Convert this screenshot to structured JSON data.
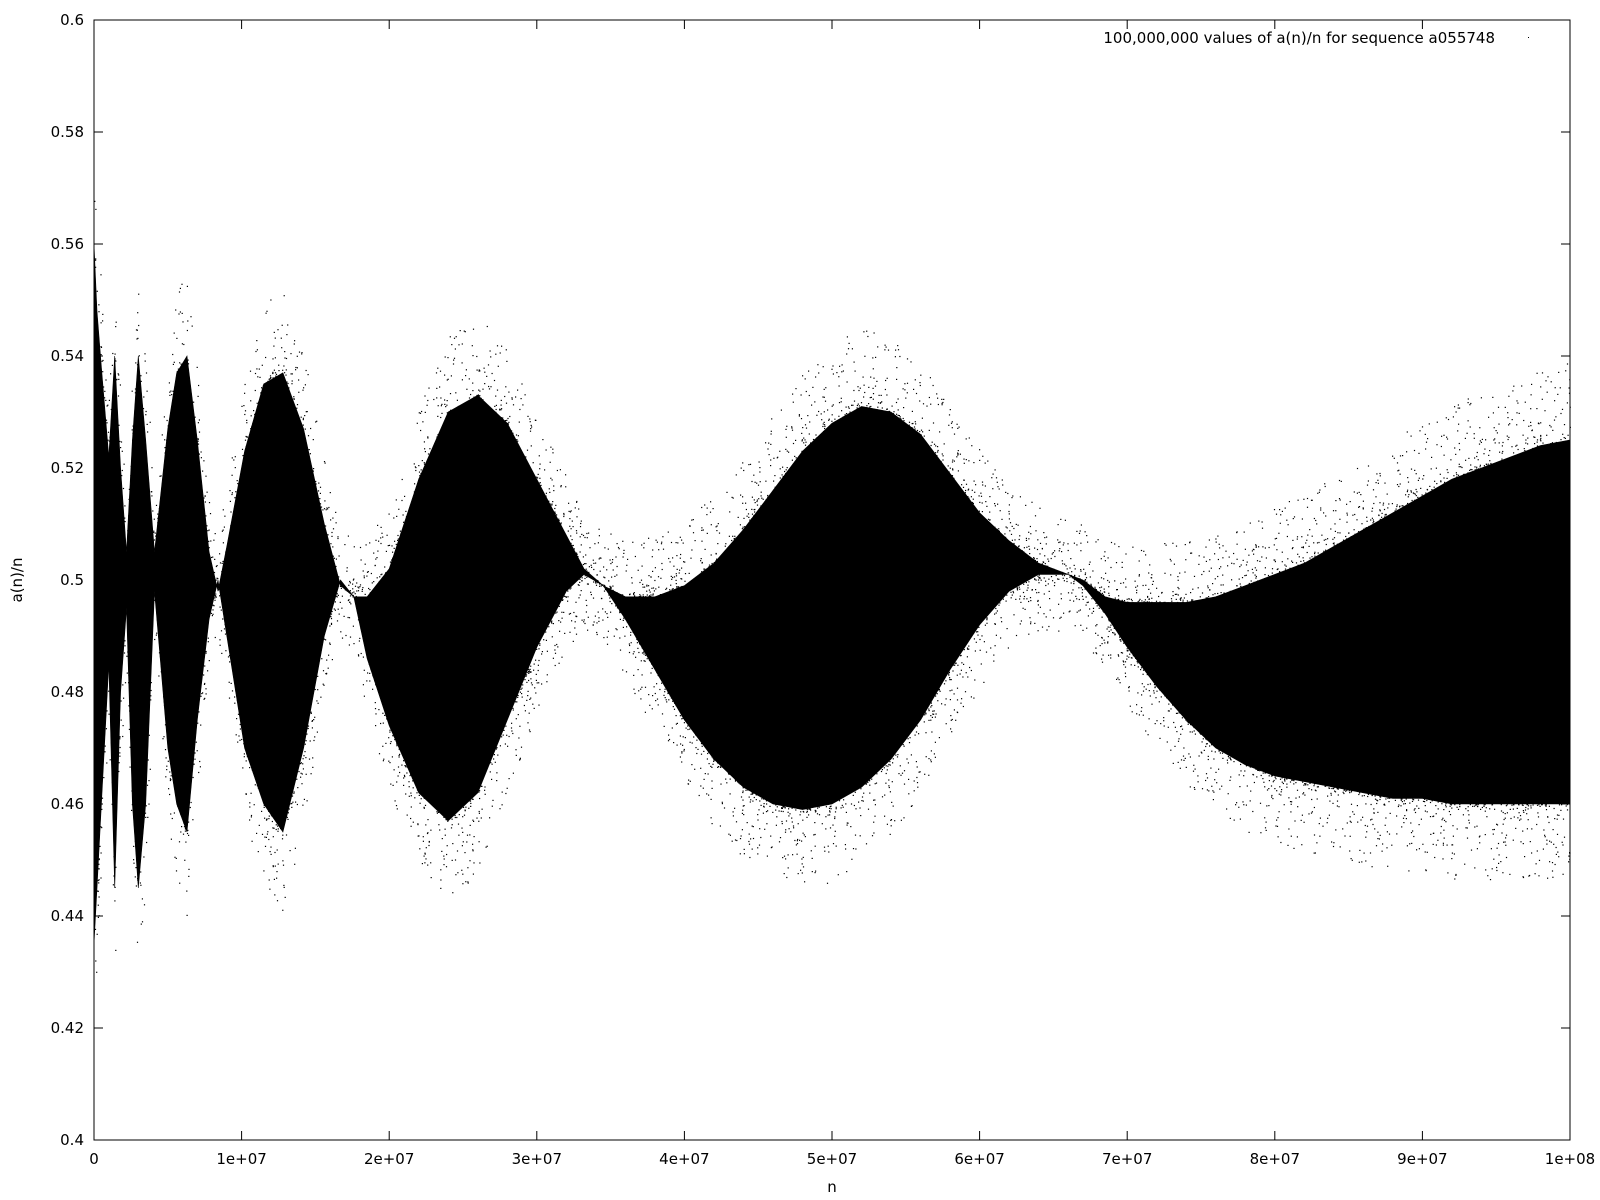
{
  "chart_data": {
    "type": "scatter",
    "title": "",
    "xlabel": "n",
    "ylabel": "a(n)/n",
    "xlim": [
      0,
      100000000
    ],
    "ylim": [
      0.4,
      0.6
    ],
    "x_ticks": [
      0,
      10000000,
      20000000,
      30000000,
      40000000,
      50000000,
      60000000,
      70000000,
      80000000,
      90000000,
      100000000
    ],
    "x_tick_labels": [
      "0",
      "1e+07",
      "2e+07",
      "3e+07",
      "4e+07",
      "5e+07",
      "6e+07",
      "7e+07",
      "8e+07",
      "9e+07",
      "1e+08"
    ],
    "y_ticks": [
      0.4,
      0.42,
      0.44,
      0.46,
      0.48,
      0.5,
      0.52,
      0.54,
      0.56,
      0.58,
      0.6
    ],
    "y_tick_labels": [
      "0.4",
      "0.42",
      "0.44",
      "0.46",
      "0.48",
      "0.5",
      "0.52",
      "0.54",
      "0.56",
      "0.58",
      "0.6"
    ],
    "grid": false,
    "legend_position": "top-right",
    "series": [
      {
        "name": "100,000,000 values of a(n)/n for sequence a055748",
        "color": "#000000",
        "marker": "dot",
        "upper_envelope": {
          "x": [
            0,
            200000,
            500000,
            1000000,
            1400000,
            1800000,
            2200000,
            2600000,
            3000000,
            3500000,
            4100000,
            5000000,
            5600000,
            6300000,
            7000000,
            7800000,
            8400000,
            9000000,
            10200000,
            11500000,
            12800000,
            14200000,
            15600000,
            16700000,
            17600000,
            18500000,
            20000000,
            22000000,
            24000000,
            26000000,
            28000000,
            30000000,
            32000000,
            33200000,
            34500000,
            36000000,
            38000000,
            40000000,
            42000000,
            44000000,
            46000000,
            48000000,
            50000000,
            52000000,
            54000000,
            56000000,
            58000000,
            60000000,
            62000000,
            64000000,
            66000000,
            67000000,
            68500000,
            70000000,
            72000000,
            74000000,
            76000000,
            78000000,
            80000000,
            82000000,
            84000000,
            86000000,
            88000000,
            90000000,
            92000000,
            94000000,
            96000000,
            98000000,
            100000000
          ],
          "y": [
            0.56,
            0.548,
            0.538,
            0.522,
            0.54,
            0.52,
            0.505,
            0.525,
            0.54,
            0.525,
            0.505,
            0.527,
            0.537,
            0.54,
            0.525,
            0.505,
            0.498,
            0.506,
            0.523,
            0.535,
            0.537,
            0.527,
            0.51,
            0.499,
            0.497,
            0.497,
            0.502,
            0.518,
            0.53,
            0.533,
            0.528,
            0.518,
            0.508,
            0.502,
            0.499,
            0.497,
            0.497,
            0.499,
            0.503,
            0.509,
            0.516,
            0.523,
            0.528,
            0.531,
            0.53,
            0.526,
            0.519,
            0.512,
            0.507,
            0.503,
            0.501,
            0.5,
            0.497,
            0.496,
            0.496,
            0.496,
            0.497,
            0.499,
            0.501,
            0.503,
            0.506,
            0.509,
            0.512,
            0.515,
            0.518,
            0.52,
            0.522,
            0.524,
            0.525
          ]
        },
        "lower_envelope": {
          "x": [
            0,
            200000,
            500000,
            1000000,
            1400000,
            1800000,
            2200000,
            2600000,
            3000000,
            3500000,
            4100000,
            5000000,
            5600000,
            6300000,
            7000000,
            7800000,
            8400000,
            9000000,
            10200000,
            11500000,
            12800000,
            14200000,
            15600000,
            16700000,
            17600000,
            18500000,
            20000000,
            22000000,
            24000000,
            26000000,
            28000000,
            30000000,
            32000000,
            33200000,
            34500000,
            36000000,
            38000000,
            40000000,
            42000000,
            44000000,
            46000000,
            48000000,
            50000000,
            52000000,
            54000000,
            56000000,
            58000000,
            60000000,
            62000000,
            64000000,
            66000000,
            67000000,
            68500000,
            70000000,
            72000000,
            74000000,
            76000000,
            78000000,
            80000000,
            82000000,
            84000000,
            86000000,
            88000000,
            90000000,
            92000000,
            94000000,
            96000000,
            98000000,
            100000000
          ],
          "y": [
            0.435,
            0.445,
            0.46,
            0.485,
            0.445,
            0.48,
            0.495,
            0.46,
            0.445,
            0.46,
            0.498,
            0.47,
            0.46,
            0.455,
            0.475,
            0.493,
            0.5,
            0.49,
            0.47,
            0.46,
            0.455,
            0.47,
            0.49,
            0.5,
            0.497,
            0.486,
            0.474,
            0.462,
            0.457,
            0.462,
            0.475,
            0.488,
            0.498,
            0.501,
            0.499,
            0.493,
            0.484,
            0.475,
            0.468,
            0.463,
            0.46,
            0.459,
            0.46,
            0.463,
            0.468,
            0.475,
            0.484,
            0.492,
            0.498,
            0.501,
            0.501,
            0.499,
            0.494,
            0.488,
            0.481,
            0.475,
            0.47,
            0.467,
            0.465,
            0.464,
            0.463,
            0.462,
            0.461,
            0.461,
            0.46,
            0.46,
            0.46,
            0.46,
            0.46
          ]
        }
      }
    ]
  }
}
